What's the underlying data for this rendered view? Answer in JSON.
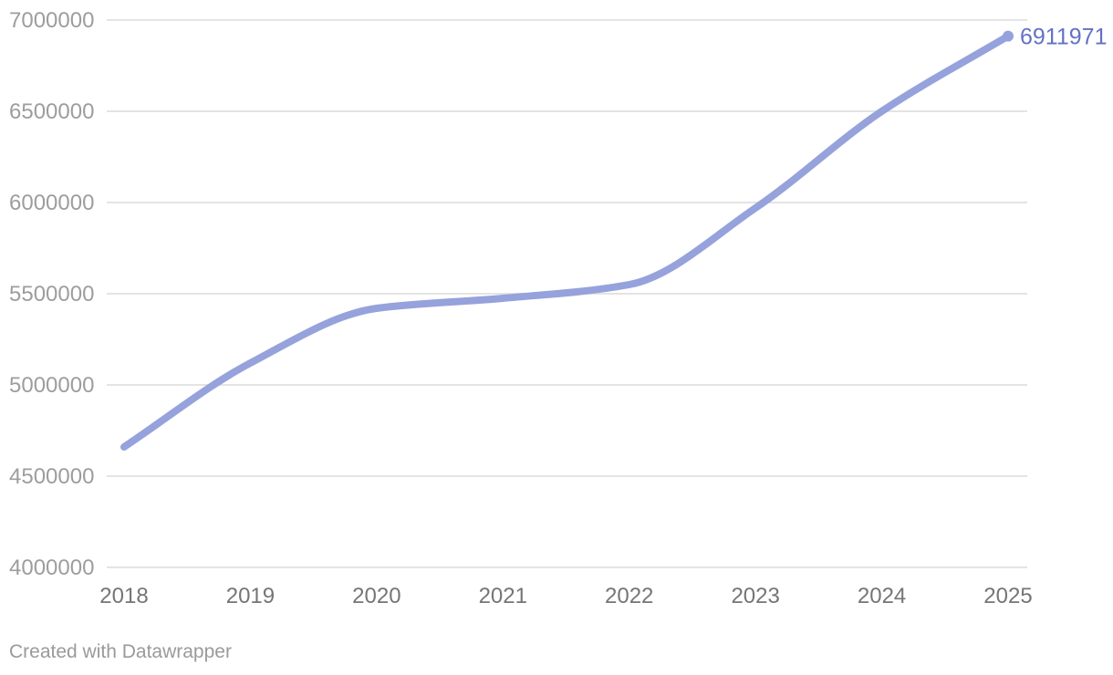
{
  "chart_data": {
    "type": "line",
    "title": "",
    "xlabel": "",
    "ylabel": "",
    "x": [
      2018,
      2019,
      2020,
      2021,
      2022,
      2023,
      2024,
      2025
    ],
    "series": [
      {
        "name": "value",
        "values": [
          4660000,
          5120000,
          5420000,
          5475000,
          5550000,
          5970000,
          6500000,
          6911971
        ]
      }
    ],
    "x_tick_labels": [
      "2018",
      "2019",
      "2020",
      "2021",
      "2022",
      "2023",
      "2024",
      "2025"
    ],
    "y_tick_labels": [
      "4000000",
      "4500000",
      "5000000",
      "5500000",
      "6000000",
      "6500000",
      "7000000"
    ],
    "y_ticks": [
      4000000,
      4500000,
      5000000,
      5500000,
      6000000,
      6500000,
      7000000
    ],
    "ylim": [
      4000000,
      7000000
    ],
    "grid": "horizontal",
    "legend_position": "none",
    "curve": "monotone",
    "end_label": "6911971",
    "colors": {
      "line": "#96a2db",
      "end_dot": "#96a2db",
      "end_label": "#6272c4",
      "grid_line": "#e4e4e4",
      "y_tick_text": "#9d9d9d",
      "x_tick_text": "#757575",
      "background": "#ffffff"
    }
  },
  "footer": {
    "attribution": "Created with Datawrapper"
  }
}
